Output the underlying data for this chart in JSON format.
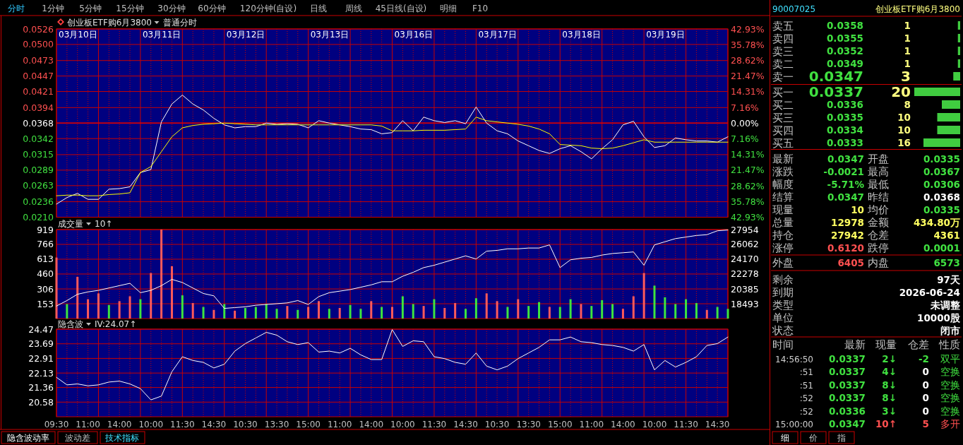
{
  "chart_data": [
    {
      "type": "other",
      "annotations": [
        "分时",
        "1分钟",
        "5分钟",
        "15分钟",
        "30分钟",
        "60分钟",
        "120分钟(自设)",
        "日线",
        "周线",
        "45日线(自设)",
        "明细",
        "F10",
        "隐含波动率",
        "波动差",
        "技术指标",
        "细",
        "价",
        "指",
        "90007025",
        "创业板ETF购6月3800"
      ],
      "colors": [
        "#30c8ff",
        "#c0c0c0",
        "#c0c0c0",
        "#c0c0c0",
        "#c0c0c0",
        "#c0c0c0",
        "#c0c0c0",
        "#c0c0c0",
        "#c0c0c0",
        "#c0c0c0",
        "#c0c0c0",
        "#c0c0c0",
        "#ffffff",
        "#c0c0c0",
        "#40e0ff",
        "#ffffff",
        "#c0c0c0",
        "#c0c0c0",
        "#40e0ff",
        "#ffff80"
      ]
    },
    {
      "type": "line",
      "title": "创业板ETF购6月3800",
      "subtitle": "普通分时",
      "ylim": [
        0.021,
        0.0526
      ],
      "y2lim": [
        -42.93,
        42.93
      ],
      "grid": true,
      "tick_labels": "y",
      "categories": [
        null,
        null,
        null,
        null,
        null,
        null,
        null,
        null,
        null,
        null,
        null,
        null,
        null,
        null,
        null,
        null,
        null,
        null,
        null,
        null,
        null,
        null,
        null,
        null,
        null,
        null,
        null,
        null,
        null,
        null,
        null,
        null,
        null,
        null,
        null,
        null,
        null,
        null,
        null,
        null,
        null,
        null,
        null,
        null,
        null,
        null,
        null,
        null,
        null,
        null,
        null,
        null,
        null,
        null,
        null,
        null,
        null,
        null,
        null,
        null,
        null,
        null,
        null,
        null,
        null
      ],
      "annotations": [
        "03月10日",
        "03月11日",
        "03月12日",
        "03月13日",
        "03月16日",
        "03月17日",
        "03月18日",
        "03月19日"
      ],
      "yticks": [
        0.0526,
        {
          "value": 0.05,
          "label": "0.0500"
        },
        0.0473,
        0.0447,
        0.0421,
        0.0394,
        0.0368,
        0.0342,
        0.0315,
        0.0289,
        0.0263,
        0.0236,
        {
          "value": 0.021,
          "label": "0.0210"
        }
      ],
      "y2ticks": [
        {
          "value": 42.93,
          "label": "42.93%"
        },
        {
          "value": 35.78,
          "label": "35.78%"
        },
        {
          "value": 28.62,
          "label": "28.62%"
        },
        {
          "value": 21.47,
          "label": "21.47%"
        },
        {
          "value": 14.31,
          "label": "14.31%"
        },
        {
          "value": 7.16,
          "label": "7.16%"
        },
        {
          "value": 0,
          "label": "0.00%"
        },
        {
          "value": -7.16,
          "label": "7.16%"
        },
        {
          "value": -14.31,
          "label": "14.31%"
        },
        {
          "value": -21.47,
          "label": "21.47%"
        },
        {
          "value": -28.62,
          "label": "28.62%"
        },
        {
          "value": -35.78,
          "label": "35.78%"
        },
        {
          "value": -42.93,
          "label": "42.93%"
        }
      ],
      "ref_lines": [
        {
          "axis": "y",
          "value": 0.0368,
          "color": "#e00000"
        }
      ],
      "series": [
        {
          "color": "#ffffff",
          "values": [
            0.0232,
            0.0243,
            0.025,
            0.024,
            0.024,
            0.0257,
            0.0258,
            0.0261,
            0.0285,
            0.029,
            0.037,
            0.04,
            0.0415,
            0.04,
            0.039,
            0.0376,
            0.0365,
            0.036,
            0.0362,
            0.0362,
            0.0368,
            0.0366,
            0.0367,
            0.0366,
            0.036,
            0.0372,
            0.0368,
            0.0365,
            0.0362,
            0.0358,
            0.0357,
            0.035,
            0.0352,
            0.0372,
            0.0355,
            0.0378,
            0.0372,
            0.0369,
            0.0372,
            0.0367,
            0.0395,
            0.0368,
            0.0355,
            0.035,
            0.0338,
            0.033,
            0.0322,
            0.0317,
            0.0325,
            0.033,
            0.032,
            0.0308,
            0.0325,
            0.034,
            0.0365,
            0.0371,
            0.0345,
            0.0327,
            0.033,
            0.0343,
            0.034,
            0.0338,
            0.0338,
            0.0336,
            0.0345
          ]
        },
        {
          "color": "#ffff00",
          "values": [
            0.0246,
            0.0247,
            0.0247,
            0.0246,
            0.0246,
            0.0248,
            0.0249,
            0.0251,
            0.0285,
            0.0295,
            0.032,
            0.0345,
            0.036,
            0.0364,
            0.0366,
            0.0367,
            0.0368,
            0.0367,
            0.0366,
            0.0365,
            0.0365,
            0.0365,
            0.0365,
            0.0365,
            0.0365,
            0.0365,
            0.0365,
            0.0365,
            0.0365,
            0.0365,
            0.0365,
            0.0363,
            0.0355,
            0.0355,
            0.0355,
            0.0356,
            0.0356,
            0.0356,
            0.0357,
            0.0358,
            0.0378,
            0.0372,
            0.037,
            0.0368,
            0.0366,
            0.0363,
            0.0358,
            0.035,
            0.0332,
            0.0331,
            0.033,
            0.0326,
            0.0325,
            0.0326,
            0.033,
            0.0335,
            0.034,
            0.0336,
            0.0336,
            0.0336,
            0.0336,
            0.0336,
            0.0336,
            0.0336,
            0.0336
          ]
        }
      ]
    },
    {
      "type": "bar",
      "title": "成交量",
      "subtitle": "10↑",
      "ylim": [
        0,
        919
      ],
      "y2lim": [
        16601,
        27954
      ],
      "grid": true,
      "tick_labels": "y",
      "categories": [
        null,
        null,
        null,
        null,
        null,
        null,
        null,
        null,
        null,
        null,
        null,
        null,
        null,
        null,
        null,
        null,
        null,
        null,
        null,
        null,
        null,
        null,
        null,
        null,
        null,
        null,
        null,
        null,
        null,
        null,
        null,
        null,
        null,
        null,
        null,
        null,
        null,
        null,
        null,
        null,
        null,
        null,
        null,
        null,
        null,
        null,
        null,
        null,
        null,
        null,
        null,
        null,
        null,
        null,
        null,
        null,
        null,
        null,
        null,
        null,
        null,
        null,
        null,
        null,
        null
      ],
      "yticks": [
        919,
        766,
        613,
        460,
        306,
        153
      ],
      "y2ticks": [
        27954,
        26062,
        24170,
        22278,
        20385,
        18493
      ],
      "series": [
        {
          "type": "bar",
          "values": [
            630,
            150,
            430,
            200,
            260,
            140,
            180,
            230,
            200,
            470,
            919,
            540,
            240,
            160,
            120,
            90,
            150,
            80,
            110,
            120,
            150,
            100,
            130,
            90,
            120,
            180,
            100,
            110,
            140,
            100,
            180,
            120,
            120,
            230,
            150,
            130,
            200,
            110,
            160,
            100,
            210,
            260,
            180,
            120,
            200,
            130,
            170,
            120,
            120,
            200,
            150,
            130,
            190,
            150,
            100,
            230,
            470,
            340,
            220,
            150,
            200,
            160,
            90,
            120,
            100
          ],
          "colors": [
            "#ff5a5a",
            "#3ee43e",
            "#ff5a5a",
            "#ff5a5a",
            "#ff5a5a",
            "#3ee43e",
            "#ff5a5a",
            "#ff5a5a",
            "#3ee43e",
            "#ff5a5a",
            "#ff5a5a",
            "#ff5a5a",
            "#3ee43e",
            "#ff5a5a",
            "#3ee43e",
            "#ff5a5a",
            "#3ee43e",
            "#ff5a5a",
            "#3ee43e",
            "#3ee43e",
            "#3ee43e",
            "#3ee43e",
            "#ff5a5a",
            "#3ee43e",
            "#ff5a5a",
            "#ff5a5a",
            "#3ee43e",
            "#ff5a5a",
            "#3ee43e",
            "#3ee43e",
            "#ff5a5a",
            "#3ee43e",
            "#ff5a5a",
            "#3ee43e",
            "#3ee43e",
            "#ff5a5a",
            "#3ee43e",
            "#ff5a5a",
            "#ff5a5a",
            "#3ee43e",
            "#3ee43e",
            "#ff5a5a",
            "#ff5a5a",
            "#3ee43e",
            "#ff5a5a",
            "#3ee43e",
            "#3ee43e",
            "#ff5a5a",
            "#3ee43e",
            "#3ee43e",
            "#ff5a5a",
            "#3ee43e",
            "#3ee43e",
            "#3ee43e",
            "#ff5a5a",
            "#ff5a5a",
            "#ff5a5a",
            "#3ee43e",
            "#3ee43e",
            "#3ee43e",
            "#3ee43e",
            "#3ee43e",
            "#ff5a5a",
            "#3ee43e",
            "#3ee43e"
          ]
        },
        {
          "type": "line",
          "axis": "y2",
          "color": "#ffffff",
          "values": [
            18200,
            18900,
            19700,
            20000,
            20200,
            20500,
            20800,
            21100,
            19900,
            20200,
            20800,
            21600,
            21200,
            20500,
            19800,
            19500,
            17900,
            18000,
            18100,
            18300,
            18400,
            18500,
            18600,
            18900,
            18400,
            19400,
            19900,
            20100,
            20300,
            20600,
            20900,
            21300,
            21300,
            22000,
            22500,
            23100,
            23400,
            23800,
            24200,
            24600,
            24200,
            25200,
            25300,
            25500,
            25500,
            25600,
            25600,
            26000,
            23100,
            24100,
            24300,
            24400,
            24700,
            24900,
            25000,
            25100,
            23400,
            26000,
            26400,
            26800,
            27000,
            27200,
            27300,
            27800,
            27900
          ]
        }
      ]
    },
    {
      "type": "line",
      "title": "隐含波",
      "subtitle": "IV:24.07↑",
      "ylim": [
        19.8,
        24.47
      ],
      "grid": true,
      "categories": [
        "09:30",
        null,
        null,
        "11:00",
        null,
        null,
        "14:00",
        null,
        null,
        "10:00",
        null,
        null,
        "11:30",
        null,
        null,
        "14:30",
        null,
        null,
        "10:30",
        null,
        null,
        "13:30",
        null,
        null,
        "15:00",
        null,
        null,
        "11:00",
        null,
        null,
        "14:00",
        null,
        null,
        "10:00",
        null,
        null,
        "11:30",
        null,
        null,
        "14:30",
        null,
        null,
        "10:30",
        null,
        null,
        "13:30",
        null,
        null,
        "15:00",
        null,
        null,
        "11:00",
        null,
        null,
        "14:00",
        null,
        null,
        "10:00",
        null,
        null,
        "11:30",
        null,
        null,
        "14:30",
        null
      ],
      "yticks": [
        24.47,
        23.69,
        22.91,
        22.13,
        21.36,
        20.58
      ],
      "series": [
        {
          "color": "#ffffff",
          "values": [
            21.9,
            21.5,
            21.55,
            21.45,
            21.5,
            21.65,
            21.7,
            21.55,
            21.3,
            20.7,
            20.9,
            22.2,
            23.0,
            22.8,
            22.7,
            22.4,
            22.6,
            23.3,
            23.7,
            24.0,
            24.3,
            24.15,
            23.8,
            23.65,
            23.75,
            23.25,
            23.3,
            23.2,
            23.45,
            23.1,
            22.85,
            22.85,
            24.45,
            23.55,
            23.85,
            23.8,
            23.0,
            22.9,
            22.7,
            22.6,
            23.2,
            22.5,
            22.3,
            22.5,
            22.9,
            23.2,
            23.5,
            23.9,
            23.9,
            24.05,
            23.8,
            23.75,
            23.65,
            23.6,
            23.5,
            23.3,
            23.65,
            22.3,
            22.8,
            22.45,
            22.7,
            23.0,
            23.6,
            23.7,
            24.05
          ]
        }
      ]
    },
    {
      "type": "bar",
      "orientation": "horizontal",
      "categories": [
        "卖五",
        "卖四",
        "卖三",
        "卖二",
        "卖一",
        "买一",
        "买二",
        "买三",
        "买四",
        "买五"
      ],
      "values": [
        1,
        1,
        1,
        1,
        3,
        20,
        8,
        10,
        10,
        16
      ],
      "color": "#40cc40",
      "xlim": [
        20,
        0
      ],
      "tick_labels": false,
      "data_labels": true,
      "annotations": [
        "0.0358",
        "0.0355",
        "0.0352",
        "0.0349",
        "0.0347",
        "0.0337",
        "0.0336",
        "0.0335",
        "0.0334",
        "0.0333"
      ]
    },
    {
      "type": "other",
      "annotations": [
        "最新",
        "0.0347",
        "开盘",
        "0.0335",
        "涨跌",
        "-0.0021",
        "最高",
        "0.0367",
        "幅度",
        "-5.71%",
        "最低",
        "0.0306",
        "结算",
        "0.0347",
        "昨结",
        "0.0368",
        "现量",
        "10",
        "均价",
        "0.0335",
        "总量",
        "12978",
        "金额",
        "434.80万",
        "持仓",
        "27942",
        "仓差",
        "4361",
        "涨停",
        "0.6120",
        "跌停",
        "0.0001",
        "外盘",
        "6405",
        "内盘",
        "6573",
        "剩余",
        "97天",
        "到期",
        "2026-06-24",
        "类型",
        "未调整",
        "单位",
        "10000股",
        "状态",
        "闭市"
      ],
      "colors": [
        "#c0c0c0",
        "#40e040",
        "#c0c0c0",
        "#40e040",
        "#c0c0c0",
        "#40e040",
        "#c0c0c0",
        "#40e040",
        "#c0c0c0",
        "#40e040",
        "#c0c0c0",
        "#40e040",
        "#c0c0c0",
        "#40e040",
        "#c0c0c0",
        "#ffffff",
        "#c0c0c0",
        "#ffff60",
        "#c0c0c0",
        "#40e040",
        "#c0c0c0",
        "#ffff60",
        "#c0c0c0",
        "#ffff60",
        "#c0c0c0",
        "#ffff60",
        "#c0c0c0",
        "#ffff60",
        "#c0c0c0",
        "#ff5050",
        "#c0c0c0",
        "#40e040",
        "#c0c0c0",
        "#ff5050",
        "#c0c0c0",
        "#40e040",
        "#c0c0c0",
        "#ffffff",
        "#c0c0c0",
        "#ffffff",
        "#c0c0c0",
        "#ffffff",
        "#c0c0c0",
        "#ffffff",
        "#c0c0c0",
        "#ffffff"
      ]
    },
    {
      "type": "other",
      "annotations": [
        "时间",
        "最新",
        "现量",
        "仓差",
        "性质",
        "14:56:50",
        "0.0337",
        "2↓",
        "-2",
        "双平",
        ":51",
        "0.0337",
        "4↓",
        "0",
        "空换",
        ":51",
        "0.0337",
        "8↓",
        "0",
        "空换",
        ":52",
        "0.0337",
        "8↓",
        "0",
        "空换",
        ":52",
        "0.0336",
        "3↓",
        "0",
        "空换",
        "15:00:00",
        "0.0347",
        "10↑",
        "5",
        "多开"
      ],
      "colors": [
        "#c0c0c0",
        "#c0c0c0",
        "#c0c0c0",
        "#c0c0c0",
        "#c0c0c0",
        "#d0d0d0",
        "#40e040",
        "#40e040",
        "#40e040",
        "#40e040",
        "#d0d0d0",
        "#40e040",
        "#40e040",
        "#ffffff",
        "#40e040",
        "#d0d0d0",
        "#40e040",
        "#40e040",
        "#ffffff",
        "#40e040",
        "#d0d0d0",
        "#40e040",
        "#40e040",
        "#ffffff",
        "#40e040",
        "#d0d0d0",
        "#40e040",
        "#40e040",
        "#ffffff",
        "#40e040",
        "#d0d0d0",
        "#40e040",
        "#ff5050",
        "#ff5050",
        "#ff5050"
      ]
    }
  ]
}
